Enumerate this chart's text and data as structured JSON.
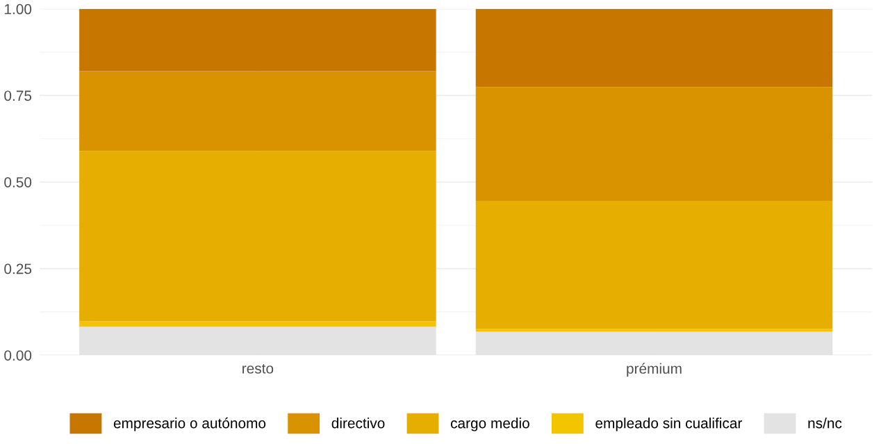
{
  "chart_data": {
    "type": "bar",
    "stacked": true,
    "categories": [
      "resto",
      "prémium"
    ],
    "series": [
      {
        "name": "ns/nc",
        "color": "#e3e3e3",
        "values": [
          0.082,
          0.068
        ]
      },
      {
        "name": "empleado sin cualificar",
        "color": "#f2c500",
        "values": [
          0.016,
          0.008
        ]
      },
      {
        "name": "cargo medio",
        "color": "#e5ae00",
        "values": [
          0.492,
          0.37
        ]
      },
      {
        "name": "directivo",
        "color": "#d99200",
        "values": [
          0.23,
          0.328
        ]
      },
      {
        "name": "empresario o autónomo",
        "color": "#c77600",
        "values": [
          0.18,
          0.226
        ]
      }
    ],
    "ylim": [
      0,
      1
    ],
    "yticks": [
      {
        "value": 0,
        "label": "0.00"
      },
      {
        "value": 0.25,
        "label": "0.25"
      },
      {
        "value": 0.5,
        "label": "0.50"
      },
      {
        "value": 0.75,
        "label": "0.75"
      },
      {
        "value": 1,
        "label": "1.00"
      }
    ],
    "grid": true,
    "legend": "bottom"
  }
}
